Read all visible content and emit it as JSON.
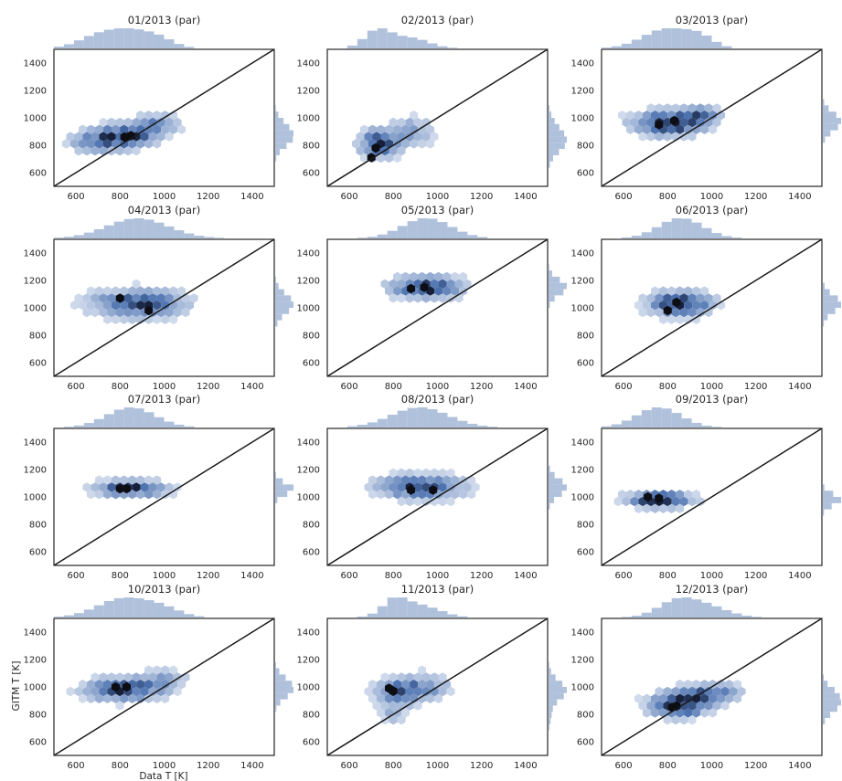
{
  "chart_data": {
    "type": "hexbin",
    "figure_xlabel": "Data T [K]",
    "figure_ylabel": "GITM T [K]",
    "xlim": [
      500,
      1500
    ],
    "ylim": [
      500,
      1500
    ],
    "xticks": [
      600,
      800,
      1000,
      1200,
      1400
    ],
    "yticks": [
      600,
      800,
      1000,
      1200,
      1400
    ],
    "reference_line": "y = x",
    "marginal_histograms": true,
    "grid": false,
    "colors": {
      "hex": "#4c72b0",
      "hist": "#b0c1dc",
      "line": "#1a1a1a",
      "axes": "#262626"
    },
    "panels": [
      {
        "title": "01/2013 (par)",
        "clusters": [
          {
            "x": 700,
            "y": 830,
            "sx": 90,
            "sy": 60,
            "w": 1.0
          },
          {
            "x": 850,
            "y": 880,
            "sx": 90,
            "sy": 60,
            "w": 1.3
          },
          {
            "x": 980,
            "y": 960,
            "sx": 70,
            "sy": 50,
            "w": 0.8
          }
        ],
        "peaks": [
          [
            820,
            860
          ],
          [
            850,
            870
          ]
        ]
      },
      {
        "title": "02/2013 (par)",
        "clusters": [
          {
            "x": 730,
            "y": 810,
            "sx": 60,
            "sy": 70,
            "w": 1.2
          },
          {
            "x": 880,
            "y": 900,
            "sx": 80,
            "sy": 80,
            "w": 0.6
          }
        ],
        "peaks": [
          [
            720,
            780
          ],
          [
            700,
            710
          ]
        ]
      },
      {
        "title": "03/2013 (par)",
        "clusters": [
          {
            "x": 800,
            "y": 960,
            "sx": 110,
            "sy": 60,
            "w": 1.2
          },
          {
            "x": 950,
            "y": 1020,
            "sx": 60,
            "sy": 50,
            "w": 0.6
          }
        ],
        "peaks": [
          [
            760,
            950
          ],
          [
            830,
            980
          ]
        ]
      },
      {
        "title": "04/2013 (par)",
        "clusters": [
          {
            "x": 880,
            "y": 1030,
            "sx": 140,
            "sy": 70,
            "w": 1.4
          }
        ],
        "peaks": [
          [
            800,
            1070
          ],
          [
            930,
            980
          ]
        ]
      },
      {
        "title": "05/2013 (par)",
        "clusters": [
          {
            "x": 950,
            "y": 1150,
            "sx": 110,
            "sy": 55,
            "w": 1.3
          }
        ],
        "peaks": [
          [
            880,
            1140
          ],
          [
            940,
            1150
          ]
        ]
      },
      {
        "title": "06/2013 (par)",
        "clusters": [
          {
            "x": 860,
            "y": 1030,
            "sx": 100,
            "sy": 60,
            "w": 1.2
          }
        ],
        "peaks": [
          [
            800,
            980
          ],
          [
            840,
            1040
          ]
        ]
      },
      {
        "title": "07/2013 (par)",
        "clusters": [
          {
            "x": 850,
            "y": 1060,
            "sx": 110,
            "sy": 40,
            "w": 1.3
          }
        ],
        "peaks": [
          [
            800,
            1060
          ],
          [
            830,
            1060
          ]
        ]
      },
      {
        "title": "08/2013 (par)",
        "clusters": [
          {
            "x": 920,
            "y": 1070,
            "sx": 130,
            "sy": 60,
            "w": 1.2
          }
        ],
        "peaks": [
          [
            880,
            1050
          ],
          [
            980,
            1050
          ]
        ]
      },
      {
        "title": "09/2013 (par)",
        "clusters": [
          {
            "x": 760,
            "y": 980,
            "sx": 100,
            "sy": 40,
            "w": 1.2
          }
        ],
        "peaks": [
          [
            710,
            1000
          ],
          [
            760,
            990
          ]
        ]
      },
      {
        "title": "10/2013 (par)",
        "clusters": [
          {
            "x": 820,
            "y": 980,
            "sx": 120,
            "sy": 60,
            "w": 1.2
          },
          {
            "x": 1000,
            "y": 1060,
            "sx": 80,
            "sy": 50,
            "w": 0.5
          }
        ],
        "peaks": [
          [
            780,
            1000
          ],
          [
            830,
            1000
          ]
        ]
      },
      {
        "title": "11/2013 (par)",
        "clusters": [
          {
            "x": 820,
            "y": 960,
            "sx": 70,
            "sy": 60,
            "w": 1.2
          },
          {
            "x": 950,
            "y": 1000,
            "sx": 80,
            "sy": 70,
            "w": 0.7
          },
          {
            "x": 800,
            "y": 800,
            "sx": 40,
            "sy": 60,
            "w": 0.5
          }
        ],
        "peaks": [
          [
            780,
            990
          ],
          [
            800,
            970
          ]
        ]
      },
      {
        "title": "12/2013 (par)",
        "clusters": [
          {
            "x": 850,
            "y": 870,
            "sx": 90,
            "sy": 60,
            "w": 1.2
          },
          {
            "x": 1000,
            "y": 960,
            "sx": 90,
            "sy": 50,
            "w": 0.7
          }
        ],
        "peaks": [
          [
            820,
            850
          ],
          [
            840,
            860
          ]
        ]
      }
    ]
  }
}
